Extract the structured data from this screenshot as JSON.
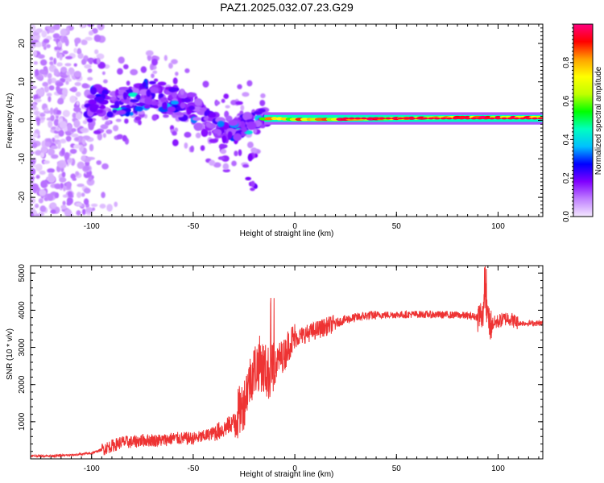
{
  "title": "PAZ1.2025.032.07.23.G29",
  "chart_data": [
    {
      "type": "heatmap",
      "xlabel": "Height of straight line (km)",
      "ylabel": "Frequency (Hz)",
      "xlim": [
        -130,
        122
      ],
      "ylim": [
        -25,
        25
      ],
      "xticks": [
        -100,
        -50,
        0,
        50,
        100
      ],
      "yticks": [
        -20,
        -10,
        0,
        10,
        20
      ],
      "grid": false,
      "colorbar": {
        "label": "Normalized spectral amplitude",
        "range": [
          0,
          1
        ],
        "ticks": [
          "0.0",
          "0.2",
          "0.4",
          "0.6",
          "0.8"
        ],
        "colors": [
          "#f4e8ff",
          "#c080ff",
          "#8000ff",
          "#0000ff",
          "#00c0ff",
          "#00ffc0",
          "#00ff00",
          "#c0ff00",
          "#ffff00",
          "#ffa000",
          "#ff0000",
          "#ff0080"
        ]
      },
      "features": {
        "scatter_region": {
          "x_range": [
            -130,
            -100
          ],
          "y_range": [
            -25,
            25
          ],
          "amplitude": 0.1
        },
        "band_trend": [
          {
            "x": -100,
            "y": 5
          },
          {
            "x": -90,
            "y": 5
          },
          {
            "x": -80,
            "y": 5
          },
          {
            "x": -70,
            "y": 7
          },
          {
            "x": -60,
            "y": 5
          },
          {
            "x": -50,
            "y": 3
          },
          {
            "x": -40,
            "y": -2
          },
          {
            "x": -30,
            "y": -3
          },
          {
            "x": -20,
            "y": 0
          },
          {
            "x": -10,
            "y": 0.5
          },
          {
            "x": 0,
            "y": 0
          },
          {
            "x": 20,
            "y": 0
          },
          {
            "x": 50,
            "y": 0.5
          },
          {
            "x": 80,
            "y": 1
          },
          {
            "x": 100,
            "y": 1
          },
          {
            "x": 122,
            "y": 1
          }
        ],
        "peak_line": {
          "y": 0.5,
          "x_start": -15,
          "x_end": 122
        }
      }
    },
    {
      "type": "line",
      "xlabel": "Height of straight line (km)",
      "ylabel": "SNR (10 * v/v)",
      "xlim": [
        -130,
        122
      ],
      "ylim": [
        0,
        5200
      ],
      "xticks": [
        -100,
        -50,
        0,
        50,
        100
      ],
      "yticks": [
        1000,
        2000,
        3000,
        4000,
        5000
      ],
      "grid": false,
      "color": "#ee3333",
      "series": [
        {
          "x": [
            -130,
            -120,
            -110,
            -100,
            -95,
            -90,
            -85,
            -80,
            -75,
            -70,
            -65,
            -60,
            -55,
            -50,
            -45,
            -40,
            -35,
            -30,
            -27,
            -25,
            -23,
            -20,
            -17,
            -15,
            -13,
            -10,
            -8,
            -5,
            -3,
            0,
            5,
            10,
            15,
            20,
            25,
            30,
            35,
            40,
            50,
            60,
            70,
            80,
            85,
            90,
            92,
            94,
            96,
            100,
            105,
            110,
            115,
            122
          ],
          "y": [
            80,
            80,
            100,
            150,
            250,
            350,
            450,
            450,
            500,
            500,
            500,
            550,
            550,
            550,
            600,
            700,
            800,
            1000,
            1300,
            1500,
            2000,
            2400,
            2600,
            2400,
            2300,
            2400,
            2700,
            2800,
            3100,
            3250,
            3350,
            3450,
            3550,
            3650,
            3750,
            3800,
            3850,
            3870,
            3880,
            3890,
            3880,
            3870,
            3850,
            3820,
            3900,
            4100,
            3600,
            3700,
            3800,
            3650,
            3650,
            3650
          ]
        }
      ]
    }
  ]
}
